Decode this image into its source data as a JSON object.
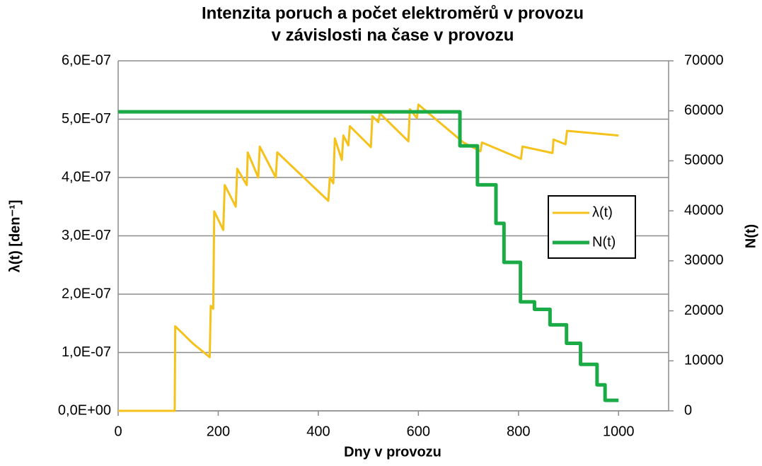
{
  "chart_data": {
    "type": "line",
    "title": [
      "Intenzita poruch a počet elektroměrů v provozu",
      "v závislosti na čase v provozu"
    ],
    "xlabel": "Dny v provozu",
    "ylabel": "λ(t) [den⁻¹]",
    "y2label": "N(t)",
    "xlim": [
      0,
      1100
    ],
    "xticks": [
      0,
      200,
      400,
      600,
      800,
      1000
    ],
    "ylim": [
      0,
      6e-07
    ],
    "yticks": [
      {
        "value": 0,
        "label": "0,0E+00"
      },
      {
        "value": 1e-07,
        "label": "1,0E-07"
      },
      {
        "value": 2e-07,
        "label": "2,0E-07"
      },
      {
        "value": 3e-07,
        "label": "3,0E-07"
      },
      {
        "value": 4e-07,
        "label": "4,0E-07"
      },
      {
        "value": 5e-07,
        "label": "5,0E-07"
      },
      {
        "value": 6e-07,
        "label": "6,0E-07"
      }
    ],
    "y2lim": [
      0,
      70000
    ],
    "y2ticks": [
      0,
      10000,
      20000,
      30000,
      40000,
      50000,
      60000,
      70000
    ],
    "grid": true,
    "legend": "right",
    "series": [
      {
        "name": "λ(t)",
        "color": "#f5c21b",
        "x": [
          0,
          113,
          114,
          150,
          183,
          185,
          190,
          192,
          210,
          213,
          235,
          238,
          257,
          259,
          280,
          283,
          315,
          318,
          420,
          423,
          430,
          433,
          447,
          450,
          460,
          463,
          505,
          508,
          520,
          523,
          580,
          583,
          597,
          600,
          690,
          724,
          727,
          805,
          808,
          868,
          870,
          894,
          897,
          1000
        ],
        "values": [
          0,
          0,
          1.45e-07,
          1.15e-07,
          9.2e-08,
          1.8e-07,
          1.75e-07,
          3.42e-07,
          3.1e-07,
          3.87e-07,
          3.5e-07,
          4.15e-07,
          3.87e-07,
          4.43e-07,
          4e-07,
          4.53e-07,
          4e-07,
          4.43e-07,
          3.6e-07,
          4e-07,
          3.9e-07,
          4.67e-07,
          4.3e-07,
          4.72e-07,
          4.55e-07,
          4.88e-07,
          4.52e-07,
          5.05e-07,
          4.95e-07,
          5.1e-07,
          4.62e-07,
          5.17e-07,
          5.02e-07,
          5.25e-07,
          4.6e-07,
          4.45e-07,
          4.6e-07,
          4.32e-07,
          4.53e-07,
          4.42e-07,
          4.65e-07,
          4.57e-07,
          4.8e-07,
          4.72e-07
        ]
      },
      {
        "name": "N(t)",
        "color": "#1aab47",
        "axis": "y2",
        "x": [
          0,
          683,
          683,
          718,
          718,
          755,
          755,
          771,
          771,
          804,
          804,
          832,
          832,
          863,
          863,
          896,
          896,
          924,
          924,
          957,
          957,
          973,
          973,
          1000
        ],
        "values": [
          59800,
          59800,
          53000,
          53000,
          45200,
          45200,
          37500,
          37500,
          29700,
          29700,
          21800,
          21800,
          20300,
          20300,
          17200,
          17200,
          13500,
          13500,
          9300,
          9300,
          5200,
          5200,
          2100,
          2100
        ]
      }
    ]
  }
}
